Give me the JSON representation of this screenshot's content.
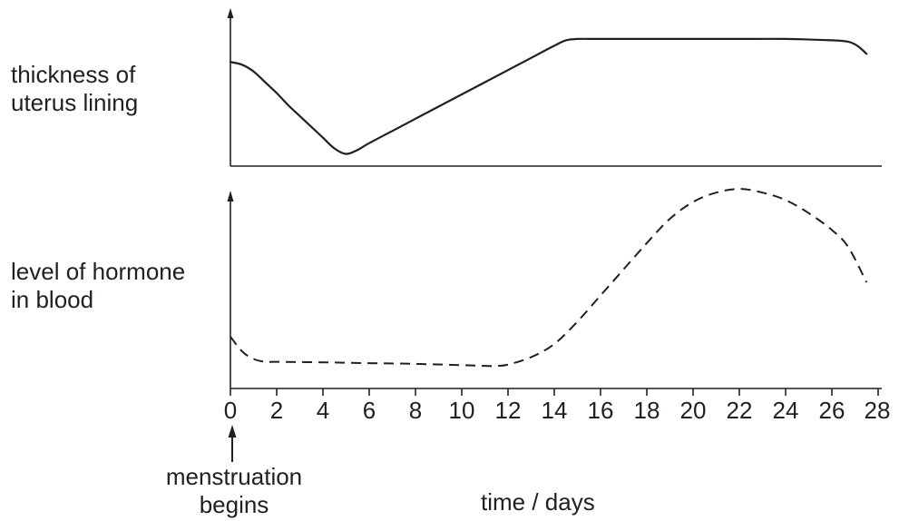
{
  "chart_data": [
    {
      "type": "line",
      "ylabel": "thickness of uterus lining",
      "xlim": [
        0,
        28
      ],
      "series": [
        {
          "style": "solid",
          "x": [
            0,
            0.5,
            1,
            1.5,
            2,
            2.5,
            3,
            3.5,
            4,
            4.5,
            5,
            5.5,
            6,
            7,
            8,
            9,
            10,
            11,
            12,
            13,
            14,
            14.5,
            15,
            16,
            18,
            20,
            22,
            24,
            26,
            26.7,
            27.1,
            27.5
          ],
          "y": [
            0.77,
            0.75,
            0.7,
            0.62,
            0.54,
            0.45,
            0.37,
            0.29,
            0.21,
            0.13,
            0.09,
            0.12,
            0.17,
            0.26,
            0.35,
            0.44,
            0.53,
            0.62,
            0.71,
            0.8,
            0.89,
            0.93,
            0.94,
            0.94,
            0.94,
            0.94,
            0.94,
            0.94,
            0.93,
            0.92,
            0.89,
            0.83
          ]
        }
      ]
    },
    {
      "type": "line",
      "ylabel": "level of hormone in blood",
      "xlim": [
        0,
        28
      ],
      "xticks": [
        0,
        2,
        4,
        6,
        8,
        10,
        12,
        14,
        16,
        18,
        20,
        22,
        24,
        26,
        28
      ],
      "series": [
        {
          "style": "dashed",
          "x": [
            0,
            0.3,
            0.6,
            1,
            1.5,
            2,
            4,
            6,
            8,
            10,
            11,
            11.5,
            12,
            13,
            14,
            15,
            16,
            17,
            18,
            19,
            20,
            21,
            22,
            23,
            24,
            25,
            26,
            26.7,
            27.5
          ],
          "y": [
            0.2,
            0.15,
            0.11,
            0.08,
            0.065,
            0.065,
            0.062,
            0.058,
            0.054,
            0.047,
            0.043,
            0.043,
            0.05,
            0.09,
            0.16,
            0.28,
            0.42,
            0.56,
            0.7,
            0.83,
            0.92,
            0.97,
            0.99,
            0.97,
            0.93,
            0.86,
            0.77,
            0.68,
            0.49
          ]
        }
      ]
    }
  ],
  "labels": {
    "top_ylabel_line1": "thickness of",
    "top_ylabel_line2": "uterus lining",
    "bottom_ylabel_line1": "level of hormone",
    "bottom_ylabel_line2": "in blood",
    "xlabel": "time / days",
    "annotation_line1": "menstruation",
    "annotation_line2": "begins"
  },
  "colors": {
    "ink": "#231f20",
    "background": "#ffffff"
  }
}
